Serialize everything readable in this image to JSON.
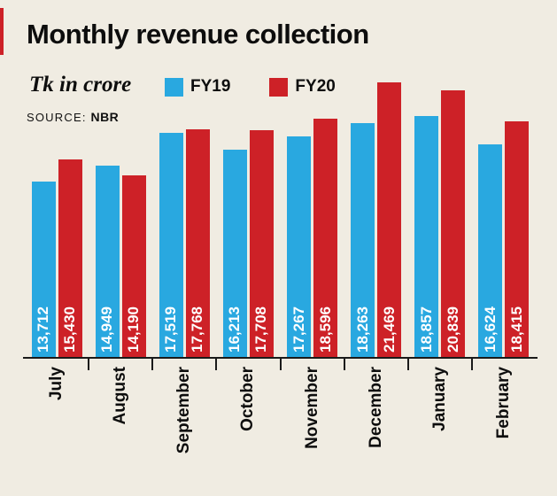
{
  "page": {
    "background": "#f0ece2",
    "accent_color": "#cd2127"
  },
  "header": {
    "title": "Monthly revenue collection",
    "subtitle": "Tk in crore",
    "source_label": "SOURCE:",
    "source_value": "NBR"
  },
  "legend": [
    {
      "label": "FY19",
      "color": "#29a8e0"
    },
    {
      "label": "FY20",
      "color": "#cd2127"
    }
  ],
  "chart_data": {
    "type": "bar",
    "title": "Monthly revenue collection",
    "unit": "Tk in crore",
    "source": "NBR",
    "categories": [
      "July",
      "August",
      "September",
      "October",
      "November",
      "December",
      "January",
      "February"
    ],
    "series": [
      {
        "name": "FY19",
        "color": "#29a8e0",
        "values": [
          13712,
          14949,
          17519,
          16213,
          17267,
          18263,
          18857,
          16624
        ]
      },
      {
        "name": "FY20",
        "color": "#cd2127",
        "values": [
          15430,
          14190,
          17768,
          17708,
          18596,
          21469,
          20839,
          18415
        ]
      }
    ],
    "ylim": [
      0,
      21469
    ],
    "value_labels": true,
    "value_label_rotation": -90,
    "category_label_rotation": -90,
    "legend_position": "top",
    "grid": false
  }
}
